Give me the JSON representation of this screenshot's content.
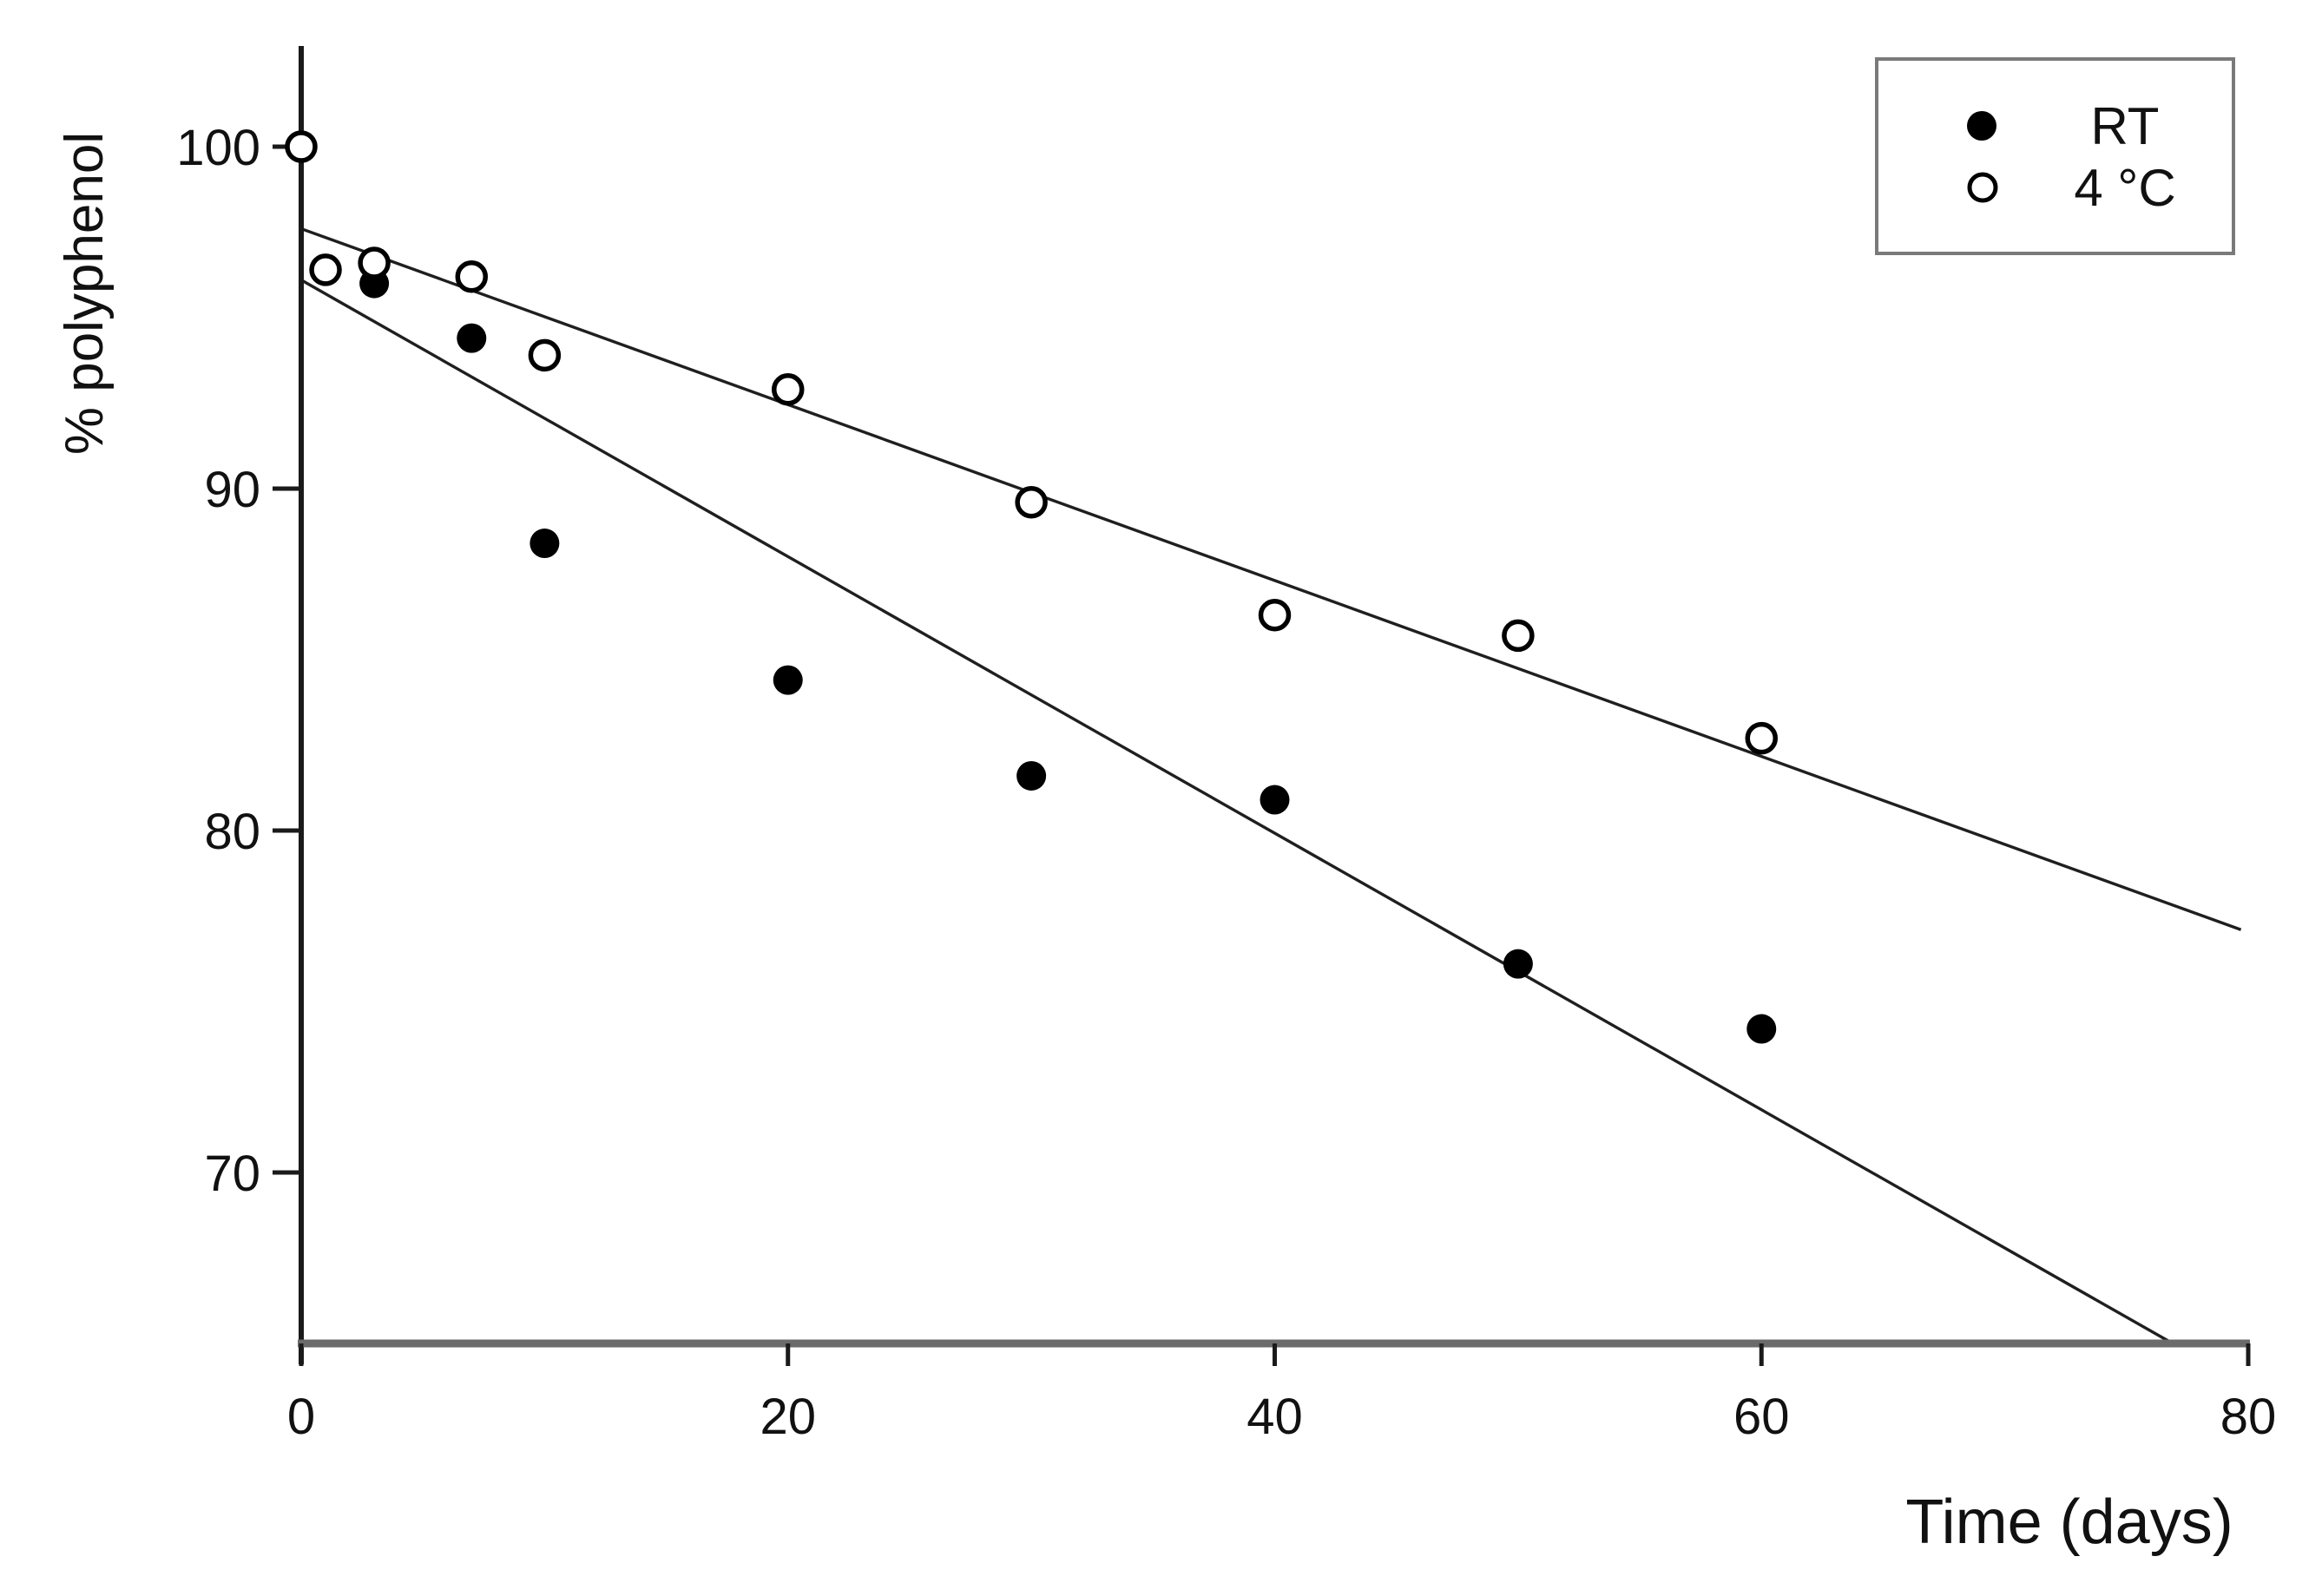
{
  "figure": {
    "background": "#ffffff",
    "axis_color": "#1a1a1a",
    "x_axis_line_color": "#6b6b6b",
    "fit_line_color": "#1f1f1f",
    "marker_color": "#000000",
    "legend_border_color": "#7a7a7a"
  },
  "chart_data": {
    "type": "scatter",
    "title": "",
    "xlabel": "Time (days)",
    "ylabel": "% polyphenol",
    "xlim": [
      0,
      80
    ],
    "ylim": [
      65,
      103
    ],
    "xticks": [
      0,
      20,
      40,
      60,
      80
    ],
    "yticks": [
      70,
      80,
      90,
      100
    ],
    "grid": false,
    "legend_position": "top-right",
    "series": [
      {
        "name": "RT",
        "marker": "filled-circle",
        "x": [
          3,
          7,
          10,
          20,
          30,
          40,
          50,
          60
        ],
        "y": [
          96.0,
          94.4,
          88.4,
          84.4,
          81.6,
          80.9,
          76.1,
          74.2
        ]
      },
      {
        "name": "4 °C",
        "marker": "open-circle",
        "x": [
          0,
          1,
          3,
          7,
          10,
          20,
          30,
          40,
          50,
          60
        ],
        "y": [
          100.0,
          96.4,
          96.6,
          96.2,
          93.9,
          92.9,
          89.6,
          86.3,
          85.7,
          82.7
        ]
      }
    ],
    "fit_lines": [
      {
        "series": "RT",
        "x1": 0,
        "y1": 96.1,
        "x2": 76.9,
        "y2": 65.0
      },
      {
        "series": "4 °C",
        "x1": 0,
        "y1": 97.6,
        "x2": 79.7,
        "y2": 77.1
      }
    ],
    "legend": {
      "entries": [
        {
          "label": "RT",
          "marker": "filled-circle"
        },
        {
          "label": "4 °C",
          "marker": "open-circle"
        }
      ]
    }
  }
}
